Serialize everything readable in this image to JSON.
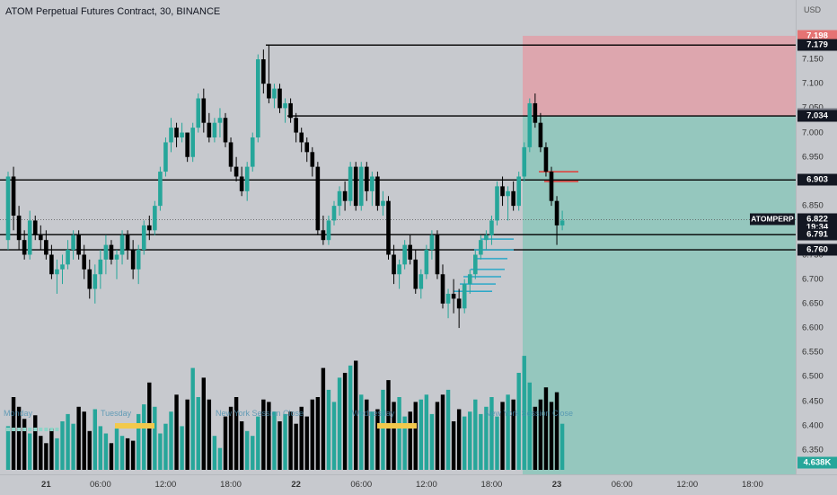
{
  "header": {
    "title": "ATOM Perpetual Futures Contract, 30, BINANCE"
  },
  "price_axis": {
    "currency": "USD",
    "ticks": [
      "7.150",
      "7.100",
      "7.050",
      "7.000",
      "6.950",
      "6.900",
      "6.850",
      "6.800",
      "6.750",
      "6.700",
      "6.650",
      "6.600",
      "6.550",
      "6.500",
      "6.450",
      "6.400",
      "6.350"
    ],
    "tick_values": [
      7.15,
      7.1,
      7.05,
      7.0,
      6.95,
      6.9,
      6.85,
      6.8,
      6.75,
      6.7,
      6.65,
      6.6,
      6.55,
      6.5,
      6.45,
      6.4,
      6.35
    ],
    "labels": [
      {
        "text": "7.198",
        "value": 7.198,
        "bg": "#e57373",
        "fg": "#ffffff"
      },
      {
        "text": "7.179",
        "value": 7.179,
        "bg": "#131722",
        "fg": "#ffffff"
      },
      {
        "text": "7.037",
        "value": 7.037,
        "bg": "#787b86",
        "fg": "#ffffff"
      },
      {
        "text": "7.034",
        "value": 7.034,
        "bg": "#131722",
        "fg": "#ffffff"
      },
      {
        "text": "6.903",
        "value": 6.903,
        "bg": "#131722",
        "fg": "#ffffff"
      },
      {
        "text": "6.822",
        "value": 6.822,
        "bg": "#131722",
        "fg": "#ffffff"
      },
      {
        "text": "19:34",
        "value": 6.8,
        "bg": "#131722",
        "fg": "#ffffff"
      },
      {
        "text": "6.791",
        "value": 6.791,
        "bg": "#131722",
        "fg": "#ffffff"
      },
      {
        "text": "6.760",
        "value": 6.76,
        "bg": "#131722",
        "fg": "#ffffff"
      },
      {
        "text": "4.638K",
        "value": 6.323,
        "bg": "#26a69a",
        "fg": "#ffffff"
      }
    ],
    "symbol_tag": "ATOMPERP"
  },
  "time_axis": {
    "labels": [
      {
        "text": "21",
        "bar": 7,
        "day": true
      },
      {
        "text": "06:00",
        "bar": 17,
        "day": false
      },
      {
        "text": "12:00",
        "bar": 29,
        "day": false
      },
      {
        "text": "18:00",
        "bar": 41,
        "day": false
      },
      {
        "text": "22",
        "bar": 53,
        "day": true
      },
      {
        "text": "06:00",
        "bar": 65,
        "day": false
      },
      {
        "text": "12:00",
        "bar": 77,
        "day": false
      },
      {
        "text": "18:00",
        "bar": 89,
        "day": false
      },
      {
        "text": "23",
        "bar": 101,
        "day": true
      },
      {
        "text": "06:00",
        "bar": 113,
        "day": false
      },
      {
        "text": "12:00",
        "bar": 125,
        "day": false
      },
      {
        "text": "18:00",
        "bar": 137,
        "day": false
      }
    ]
  },
  "session_labels": [
    "Monday",
    "Tuesday",
    "New York Session Close",
    "Wednesday",
    "New York Session Close"
  ],
  "levels": [
    7.179,
    7.034,
    6.903,
    6.791,
    6.76
  ],
  "current_price": 6.822,
  "position": {
    "entry": 7.034,
    "stop": 7.198,
    "target": 6.35
  },
  "colors": {
    "up": "#26a69a",
    "down": "#000000",
    "stop_zone": "#e0a0a8",
    "target_zone": "#8cc7bb",
    "level": "#000000",
    "orderflow": "#2aa8c8",
    "red_marks": "#e53935",
    "session_box": "#f2c94c"
  },
  "chart_data": {
    "type": "candlestick",
    "ohlc": [
      [
        6.78,
        6.92,
        6.76,
        6.91
      ],
      [
        6.91,
        6.93,
        6.8,
        6.83
      ],
      [
        6.83,
        6.85,
        6.76,
        6.78
      ],
      [
        6.78,
        6.8,
        6.74,
        6.75
      ],
      [
        6.75,
        6.84,
        6.74,
        6.82
      ],
      [
        6.82,
        6.83,
        6.78,
        6.79
      ],
      [
        6.79,
        6.81,
        6.76,
        6.78
      ],
      [
        6.78,
        6.8,
        6.74,
        6.75
      ],
      [
        6.75,
        6.77,
        6.7,
        6.71
      ],
      [
        6.71,
        6.74,
        6.67,
        6.72
      ],
      [
        6.72,
        6.75,
        6.69,
        6.73
      ],
      [
        6.73,
        6.78,
        6.72,
        6.76
      ],
      [
        6.76,
        6.8,
        6.74,
        6.79
      ],
      [
        6.79,
        6.8,
        6.74,
        6.75
      ],
      [
        6.75,
        6.77,
        6.7,
        6.72
      ],
      [
        6.72,
        6.74,
        6.66,
        6.68
      ],
      [
        6.68,
        6.73,
        6.65,
        6.71
      ],
      [
        6.71,
        6.76,
        6.68,
        6.74
      ],
      [
        6.74,
        6.79,
        6.71,
        6.77
      ],
      [
        6.77,
        6.78,
        6.73,
        6.74
      ],
      [
        6.74,
        6.76,
        6.7,
        6.75
      ],
      [
        6.75,
        6.8,
        6.73,
        6.79
      ],
      [
        6.79,
        6.8,
        6.74,
        6.76
      ],
      [
        6.76,
        6.78,
        6.7,
        6.72
      ],
      [
        6.72,
        6.77,
        6.69,
        6.76
      ],
      [
        6.76,
        6.82,
        6.75,
        6.81
      ],
      [
        6.81,
        6.83,
        6.78,
        6.8
      ],
      [
        6.8,
        6.86,
        6.79,
        6.85
      ],
      [
        6.85,
        6.93,
        6.84,
        6.92
      ],
      [
        6.92,
        6.99,
        6.91,
        6.98
      ],
      [
        6.98,
        7.03,
        6.96,
        7.01
      ],
      [
        7.01,
        7.02,
        6.97,
        6.99
      ],
      [
        6.99,
        7.02,
        6.98,
        7.0
      ],
      [
        7.0,
        7.0,
        6.94,
        6.95
      ],
      [
        6.95,
        7.02,
        6.94,
        7.01
      ],
      [
        7.01,
        7.08,
        7.0,
        7.07
      ],
      [
        7.07,
        7.09,
        7.0,
        7.02
      ],
      [
        7.02,
        7.04,
        6.98,
        6.99
      ],
      [
        6.99,
        7.03,
        6.98,
        7.02
      ],
      [
        7.02,
        7.05,
        6.99,
        7.03
      ],
      [
        7.03,
        7.04,
        6.97,
        6.98
      ],
      [
        6.98,
        6.99,
        6.92,
        6.93
      ],
      [
        6.93,
        6.95,
        6.9,
        6.91
      ],
      [
        6.91,
        6.93,
        6.87,
        6.88
      ],
      [
        6.88,
        6.94,
        6.86,
        6.93
      ],
      [
        6.93,
        7.0,
        6.92,
        6.99
      ],
      [
        6.99,
        7.16,
        6.98,
        7.15
      ],
      [
        7.15,
        7.17,
        7.08,
        7.1
      ],
      [
        7.1,
        7.18,
        7.06,
        7.07
      ],
      [
        7.07,
        7.1,
        7.05,
        7.09
      ],
      [
        7.09,
        7.1,
        7.04,
        7.05
      ],
      [
        7.05,
        7.07,
        7.02,
        7.06
      ],
      [
        7.06,
        7.07,
        7.02,
        7.03
      ],
      [
        7.03,
        7.04,
        6.98,
        7.0
      ],
      [
        7.0,
        7.01,
        6.96,
        6.98
      ],
      [
        6.98,
        6.99,
        6.94,
        6.96
      ],
      [
        6.96,
        6.97,
        6.91,
        6.93
      ],
      [
        6.93,
        6.94,
        6.79,
        6.8
      ],
      [
        6.8,
        6.83,
        6.77,
        6.78
      ],
      [
        6.78,
        6.83,
        6.77,
        6.82
      ],
      [
        6.82,
        6.86,
        6.81,
        6.85
      ],
      [
        6.85,
        6.89,
        6.83,
        6.88
      ],
      [
        6.88,
        6.9,
        6.84,
        6.86
      ],
      [
        6.86,
        6.94,
        6.85,
        6.93
      ],
      [
        6.93,
        6.94,
        6.84,
        6.85
      ],
      [
        6.85,
        6.94,
        6.84,
        6.93
      ],
      [
        6.93,
        6.94,
        6.86,
        6.88
      ],
      [
        6.88,
        6.92,
        6.85,
        6.91
      ],
      [
        6.91,
        6.92,
        6.84,
        6.85
      ],
      [
        6.85,
        6.88,
        6.83,
        6.86
      ],
      [
        6.86,
        6.87,
        6.74,
        6.75
      ],
      [
        6.75,
        6.77,
        6.69,
        6.71
      ],
      [
        6.71,
        6.74,
        6.68,
        6.73
      ],
      [
        6.73,
        6.78,
        6.72,
        6.77
      ],
      [
        6.77,
        6.79,
        6.73,
        6.74
      ],
      [
        6.74,
        6.76,
        6.67,
        6.68
      ],
      [
        6.68,
        6.72,
        6.66,
        6.71
      ],
      [
        6.71,
        6.77,
        6.7,
        6.76
      ],
      [
        6.76,
        6.8,
        6.74,
        6.79
      ],
      [
        6.79,
        6.8,
        6.7,
        6.71
      ],
      [
        6.71,
        6.73,
        6.64,
        6.65
      ],
      [
        6.65,
        6.68,
        6.62,
        6.67
      ],
      [
        6.67,
        6.7,
        6.63,
        6.66
      ],
      [
        6.66,
        6.68,
        6.6,
        6.64
      ],
      [
        6.64,
        6.7,
        6.63,
        6.69
      ],
      [
        6.69,
        6.72,
        6.67,
        6.71
      ],
      [
        6.71,
        6.76,
        6.7,
        6.75
      ],
      [
        6.75,
        6.79,
        6.74,
        6.78
      ],
      [
        6.78,
        6.8,
        6.76,
        6.79
      ],
      [
        6.79,
        6.83,
        6.77,
        6.82
      ],
      [
        6.82,
        6.9,
        6.81,
        6.89
      ],
      [
        6.89,
        6.91,
        6.85,
        6.87
      ],
      [
        6.87,
        6.89,
        6.82,
        6.88
      ],
      [
        6.88,
        6.9,
        6.84,
        6.85
      ],
      [
        6.85,
        6.92,
        6.84,
        6.91
      ],
      [
        6.91,
        6.98,
        6.9,
        6.97
      ],
      [
        6.97,
        7.07,
        6.96,
        7.06
      ],
      [
        7.06,
        7.08,
        7.01,
        7.02
      ],
      [
        7.02,
        7.04,
        6.96,
        6.97
      ],
      [
        6.97,
        6.98,
        6.91,
        6.92
      ],
      [
        6.92,
        6.93,
        6.85,
        6.86
      ],
      [
        6.86,
        6.87,
        6.77,
        6.81
      ],
      [
        6.81,
        6.84,
        6.8,
        6.82
      ]
    ],
    "volume": [
      36,
      60,
      52,
      42,
      30,
      45,
      28,
      22,
      34,
      26,
      40,
      46,
      38,
      52,
      48,
      32,
      50,
      36,
      30,
      22,
      34,
      28,
      26,
      24,
      46,
      54,
      72,
      52,
      30,
      38,
      48,
      62,
      36,
      58,
      84,
      60,
      76,
      58,
      28,
      18,
      44,
      52,
      60,
      40,
      32,
      28,
      44,
      58,
      56,
      48,
      40,
      46,
      48,
      38,
      52,
      44,
      58,
      60,
      84,
      66,
      56,
      76,
      80,
      86,
      90,
      62,
      58,
      48,
      50,
      66,
      74,
      56,
      60,
      44,
      48,
      56,
      58,
      62,
      46,
      56,
      62,
      66,
      40,
      50,
      44,
      48,
      58,
      46,
      52,
      60,
      44,
      56,
      62,
      58,
      80,
      94,
      72,
      52,
      58,
      68,
      56,
      64,
      38
    ],
    "ylim": [
      6.32,
      7.22
    ]
  }
}
